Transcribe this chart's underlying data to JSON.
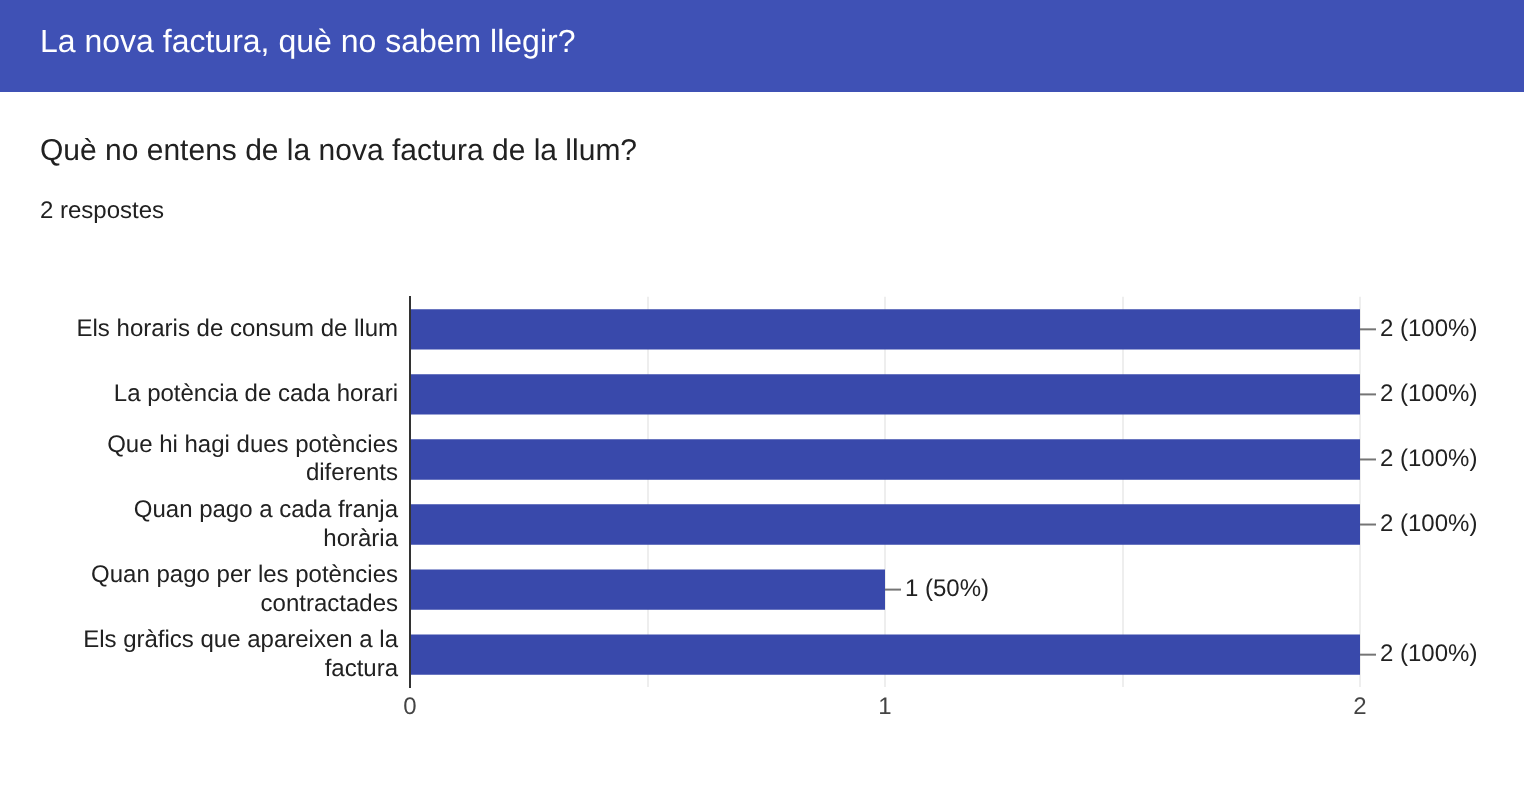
{
  "chart_data": {
    "type": "bar",
    "orientation": "horizontal",
    "title": "Què no entens de la nova factura de la llum?",
    "subtitle": "2 respostes",
    "annotations": [
      "La nova factura, què no sabem llegir?"
    ],
    "categories": [
      "Els horaris de consum de llum",
      "La potència de cada horari",
      "Que hi hagi dues potències diferents",
      "Quan pago a cada franja horària",
      "Quan pago per les potències contractades",
      "Els gràfics que apareixen a la factura"
    ],
    "values": [
      2,
      2,
      2,
      2,
      1,
      2
    ],
    "value_labels": [
      "2 (100%)",
      "2 (100%)",
      "2 (100%)",
      "2 (100%)",
      "1 (50%)",
      "2 (100%)"
    ],
    "color": "#3949ab",
    "xlim": [
      0,
      2
    ],
    "xticks": [
      0,
      {
        "value": 0.5,
        "label": null
      },
      1,
      {
        "value": 1.5,
        "label": null
      },
      2
    ],
    "grid": "x",
    "legend": false
  }
}
